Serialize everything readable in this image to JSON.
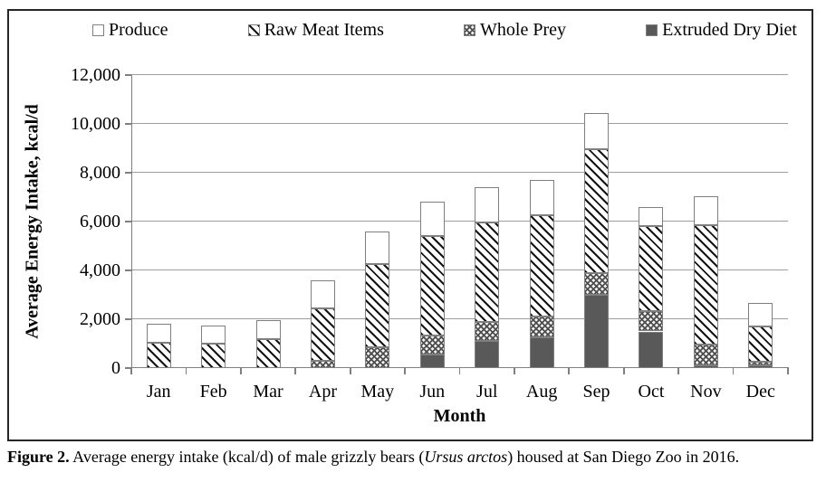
{
  "figure": {
    "caption": {
      "label": "Figure 2.",
      "text_before_species": " Average energy intake (kcal/d) of male grizzly bears (",
      "species": "Ursus arctos",
      "text_after_species": ") housed at San Diego Zoo in 2016."
    }
  },
  "chart_data": {
    "type": "bar",
    "stacked": true,
    "title": "",
    "xlabel": "Month",
    "ylabel": "Average Energy Intake, kcal/d",
    "categories": [
      "Jan",
      "Feb",
      "Mar",
      "Apr",
      "May",
      "Jun",
      "Jul",
      "Aug",
      "Sep",
      "Oct",
      "Nov",
      "Dec"
    ],
    "series": [
      {
        "name": "Extruded Dry Diet",
        "pattern": "solid",
        "values": [
          0,
          0,
          0,
          0,
          0,
          550,
          1100,
          1250,
          3000,
          1500,
          100,
          100
        ]
      },
      {
        "name": "Whole Prey",
        "pattern": "crosshatch",
        "values": [
          0,
          0,
          0,
          300,
          850,
          800,
          800,
          850,
          900,
          850,
          850,
          150
        ]
      },
      {
        "name": "Raw Meat Items",
        "pattern": "diagonal",
        "values": [
          1050,
          1000,
          1200,
          2150,
          3400,
          4050,
          4050,
          4150,
          5050,
          3450,
          4900,
          1450
        ]
      },
      {
        "name": "Produce",
        "pattern": "plain",
        "values": [
          750,
          750,
          750,
          1150,
          1350,
          1400,
          1450,
          1450,
          1500,
          800,
          1200,
          950
        ]
      }
    ],
    "stack_order": "bottom-to-top",
    "legend_order": [
      "Produce",
      "Raw Meat Items",
      "Whole Prey",
      "Extruded Dry Diet"
    ],
    "legend_position": "top",
    "grid": true,
    "ylim": [
      0,
      12000
    ],
    "yticks": [
      {
        "value": 0,
        "label": "0"
      },
      {
        "value": 2000,
        "label": "2,000"
      },
      {
        "value": 4000,
        "label": "4,000"
      },
      {
        "value": 6000,
        "label": "6,000"
      },
      {
        "value": 8000,
        "label": "8,000"
      },
      {
        "value": 10000,
        "label": "10,000"
      },
      {
        "value": 12000,
        "label": "12,000"
      }
    ]
  },
  "colors": {
    "solid_fill": "#595959",
    "bar_border": "#7f7f7f",
    "axis": "#808080",
    "gridline": "#9e9e9e",
    "frame_border": "#262626"
  }
}
